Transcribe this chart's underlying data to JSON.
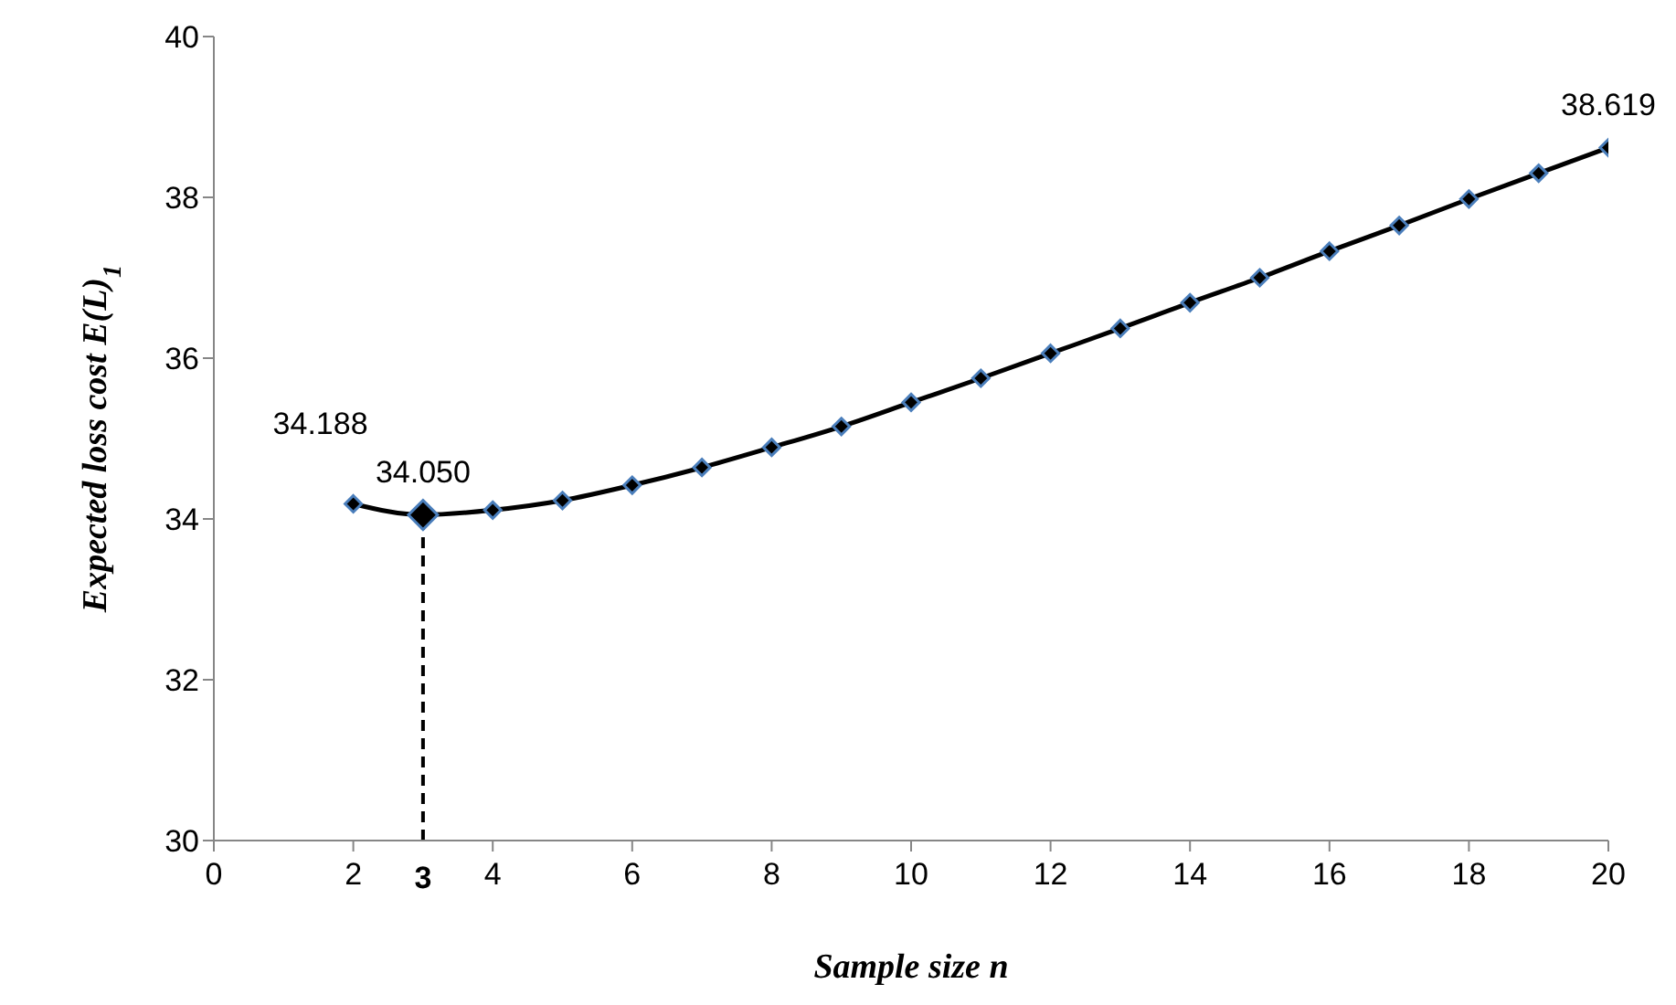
{
  "chart_data": {
    "type": "line",
    "xlabel": "Sample size n",
    "ylabel": "Expected loss cost E(L)$_{1}$",
    "x": [
      2,
      3,
      4,
      5,
      6,
      7,
      8,
      9,
      10,
      11,
      12,
      13,
      14,
      15,
      16,
      17,
      18,
      19,
      20
    ],
    "series": [
      {
        "color": "#000000",
        "values": [
          34.188,
          34.05,
          34.11,
          34.23,
          34.42,
          34.64,
          34.89,
          35.15,
          35.45,
          35.75,
          36.06,
          36.37,
          36.69,
          37.0,
          37.33,
          37.65,
          37.98,
          38.3,
          38.619
        ],
        "value_labels": [
          "34.188",
          "34.050",
          null,
          null,
          null,
          null,
          null,
          null,
          null,
          null,
          null,
          null,
          null,
          null,
          null,
          null,
          null,
          null,
          "38.619"
        ]
      }
    ],
    "xlim": [
      0,
      20
    ],
    "xticks": [
      0,
      2,
      4,
      6,
      8,
      10,
      12,
      14,
      16,
      18,
      20
    ],
    "ylim": [
      30,
      40
    ],
    "yticks": [
      30,
      32,
      34,
      36,
      38,
      40
    ],
    "ref_lines": [
      {
        "axis": "x",
        "value": 3,
        "label": "3",
        "line_style": "dashed",
        "color": "#000000"
      }
    ],
    "grid": false,
    "legend": false,
    "marker": "diamond",
    "line_style": "solid"
  }
}
